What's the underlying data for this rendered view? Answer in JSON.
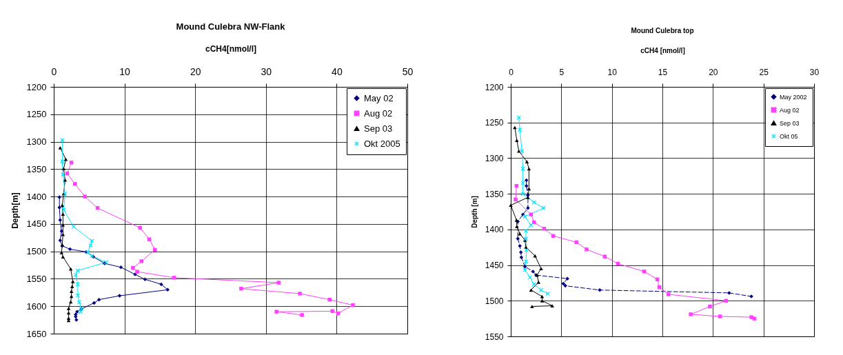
{
  "chart_data": [
    {
      "type": "line",
      "title": "Mound Culebra NW-Flank",
      "xlabel": "cCH4[nmol/l]",
      "ylabel": "Depth[m]",
      "xlim": [
        0,
        50
      ],
      "xticks": [
        0,
        10,
        20,
        30,
        40,
        50
      ],
      "ylim": [
        1650,
        1200
      ],
      "yticks": [
        1200,
        1250,
        1300,
        1350,
        1400,
        1450,
        1500,
        1550,
        1600,
        1650
      ],
      "grid": true,
      "legend": "top right",
      "series": [
        {
          "name": "May 02",
          "color": "#000080",
          "marker": "diamond",
          "x": [
            0.8,
            0.8,
            0.9,
            1.1,
            0.9,
            1.2,
            2.3,
            4.6,
            5.6,
            7.2,
            9.5,
            11.5,
            12.9,
            15.2,
            16.1,
            9.3,
            6.4,
            5.7,
            3.9,
            3.3,
            3.1,
            3.1,
            3.2
          ],
          "values": [
            1401,
            1420,
            1443,
            1463,
            1480,
            1490,
            1496,
            1501,
            1510,
            1522,
            1529,
            1542,
            1551,
            1560,
            1570,
            1581,
            1588,
            1594,
            1605,
            1610,
            1615,
            1619,
            1625
          ]
        },
        {
          "name": "Aug 02",
          "color": "#ff40ff",
          "marker": "square",
          "x": [
            2.5,
            1.9,
            3.0,
            4.4,
            6.2,
            12.2,
            13.5,
            14.3,
            12.4,
            11.2,
            11.8,
            17.0,
            31.8,
            26.5,
            34.8,
            39.0,
            42.3,
            40.2,
            39.4,
            31.5,
            35.1
          ],
          "values": [
            1338,
            1358,
            1377,
            1400,
            1421,
            1457,
            1478,
            1497,
            1518,
            1530,
            1537,
            1548,
            1557,
            1568,
            1577,
            1588,
            1598,
            1613,
            1609,
            1610,
            1616
          ]
        },
        {
          "name": "Sep 03",
          "color": "#000000",
          "marker": "triangle",
          "x": [
            0.9,
            1.7,
            1.4,
            1.6,
            1.4,
            1.2,
            1.3,
            1.3,
            1.3,
            1.2,
            1.1,
            1.3,
            2.4,
            2.7,
            2.6,
            2.5,
            2.5,
            2.4,
            2.1,
            2.1,
            2.1,
            2.1
          ],
          "values": [
            1311,
            1332,
            1349,
            1370,
            1395,
            1416,
            1432,
            1452,
            1469,
            1488,
            1502,
            1510,
            1532,
            1555,
            1564,
            1573,
            1582,
            1592,
            1604,
            1612,
            1622,
            1626
          ]
        },
        {
          "name": "Okt 2005",
          "color": "#00e5ff",
          "marker": "cross",
          "x": [
            1.2,
            1.2,
            1.3,
            1.6,
            1.4,
            2.8,
            5.4,
            5.2,
            4.8,
            5.4,
            7.4,
            3.4,
            3.1,
            3.4,
            3.4,
            3.6,
            3.9,
            3.8
          ],
          "values": [
            1297,
            1336,
            1360,
            1395,
            1424,
            1455,
            1481,
            1489,
            1502,
            1508,
            1520,
            1535,
            1543,
            1560,
            1580,
            1593,
            1605,
            1610
          ]
        }
      ]
    },
    {
      "type": "line",
      "title": "Mound Culebra top",
      "xlabel": "cCH4 [nmol/l]",
      "ylabel": "Depth [m]",
      "xlim": [
        0,
        30
      ],
      "xticks": [
        0,
        5,
        10,
        15,
        20,
        25,
        30
      ],
      "ylim": [
        1550,
        1200
      ],
      "yticks": [
        1200,
        1250,
        1300,
        1350,
        1400,
        1450,
        1500,
        1550
      ],
      "grid": true,
      "legend": "top right",
      "series": [
        {
          "name": "May 2002",
          "color": "#000080",
          "marker": "diamond",
          "line_style": "dashed",
          "x": [
            1.55,
            1.55,
            1.7,
            1.7,
            1.2,
            0.7,
            0.7,
            0.9,
            1.0,
            1.05,
            1.4,
            2.2,
            2.5,
            5.6,
            5.2,
            5.4,
            8.8,
            21.6,
            23.8
          ],
          "values": [
            1331,
            1339,
            1352,
            1370,
            1379,
            1389,
            1413,
            1423,
            1432,
            1439,
            1452,
            1459,
            1464,
            1469,
            1476,
            1479,
            1485,
            1489,
            1494
          ]
        },
        {
          "name": "Aug 02",
          "color": "#ff40ff",
          "marker": "square",
          "x": [
            0.57,
            0.48,
            2.0,
            2.3,
            3.3,
            4.2,
            6.5,
            7.5,
            9.3,
            10.6,
            13.2,
            14.5,
            14.7,
            15.6,
            21.3,
            19.7,
            17.8,
            20.7,
            23.8,
            24.1
          ],
          "values": [
            1339,
            1358,
            1379,
            1390,
            1399,
            1409,
            1418,
            1428,
            1438,
            1448,
            1459,
            1470,
            1481,
            1491,
            1500,
            1508,
            1519,
            1522,
            1523,
            1525
          ]
        },
        {
          "name": "Sep 03",
          "color": "#000000",
          "marker": "triangle",
          "x": [
            0.4,
            0.6,
            0.8,
            1.6,
            1.8,
            1.8,
            1.7,
            0.0,
            0.57,
            0.6,
            0.9,
            1.4,
            1.5,
            2.4,
            3.0,
            2.6,
            2.75,
            2.0,
            3.1,
            3.1,
            4.1,
            2.1
          ],
          "values": [
            1257,
            1275,
            1290,
            1305,
            1315,
            1343,
            1355,
            1366,
            1387,
            1396,
            1406,
            1415,
            1425,
            1437,
            1455,
            1464,
            1474,
            1485,
            1494,
            1500,
            1507,
            1508
          ]
        },
        {
          "name": "Okt 05",
          "color": "#00e5ff",
          "marker": "cross",
          "x": [
            0.8,
            0.9,
            1.1,
            1.2,
            1.2,
            1.2,
            2.3,
            3.25,
            1.4,
            2.0,
            1.5,
            1.5,
            1.55,
            1.5,
            1.4,
            1.9,
            2.3,
            3.0,
            3.65
          ],
          "values": [
            1243,
            1260,
            1290,
            1315,
            1335,
            1350,
            1362,
            1370,
            1382,
            1394,
            1402,
            1413,
            1429,
            1445,
            1457,
            1467,
            1477,
            1485,
            1490
          ]
        }
      ]
    }
  ]
}
